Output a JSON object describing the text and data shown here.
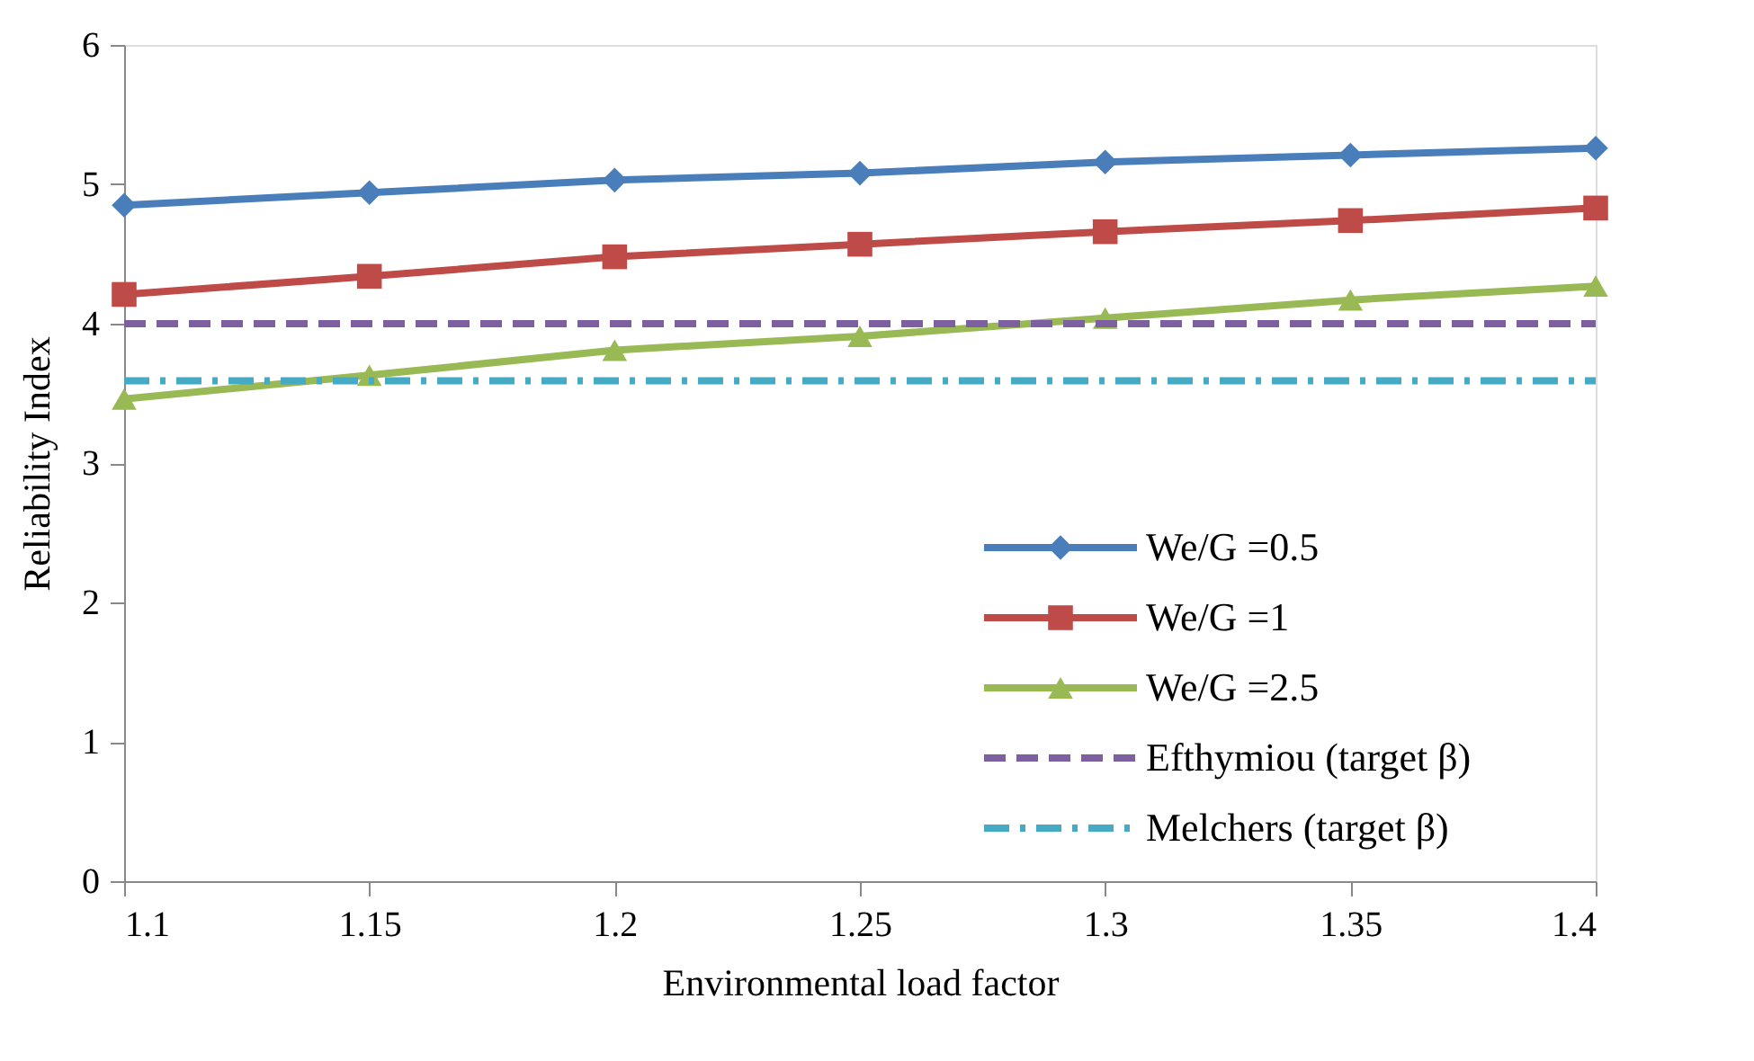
{
  "chart_data": {
    "type": "line",
    "xlabel": "Environmental load factor",
    "ylabel": "Reliability Index",
    "x": [
      1.1,
      1.15,
      1.2,
      1.25,
      1.3,
      1.35,
      1.4
    ],
    "xlim": [
      1.1,
      1.4
    ],
    "xticks": [
      1.1,
      1.15,
      1.2,
      1.25,
      1.3,
      1.35,
      1.4
    ],
    "ylim": [
      0,
      6
    ],
    "yticks": [
      0,
      1,
      2,
      3,
      4,
      5,
      6
    ],
    "grid": false,
    "legend": "bottom right",
    "series": [
      {
        "name": "We/G =0.5",
        "color": "#4a7ebb",
        "marker": "diamond",
        "line_style": "solid",
        "values": [
          4.85,
          4.94,
          5.03,
          5.08,
          5.16,
          5.21,
          5.26
        ]
      },
      {
        "name": "We/G =1",
        "color": "#be4b48",
        "marker": "square",
        "line_style": "solid",
        "values": [
          4.21,
          4.34,
          4.48,
          4.57,
          4.66,
          4.74,
          4.83
        ]
      },
      {
        "name": "We/G =2.5",
        "color": "#98b954",
        "marker": "triangle",
        "line_style": "solid",
        "values": [
          3.46,
          3.63,
          3.81,
          3.91,
          4.04,
          4.17,
          4.27
        ]
      },
      {
        "name": "Efthymiou (target β)",
        "color": "#7d60a0",
        "marker": "none",
        "line_style": "dashed",
        "values": [
          4.0,
          4.0,
          4.0,
          4.0,
          4.0,
          4.0,
          4.0
        ]
      },
      {
        "name": "Melchers (target β)",
        "color": "#46aac5",
        "marker": "none",
        "line_style": "dashdot",
        "values": [
          3.59,
          3.59,
          3.59,
          3.59,
          3.59,
          3.59,
          3.59
        ]
      }
    ]
  }
}
